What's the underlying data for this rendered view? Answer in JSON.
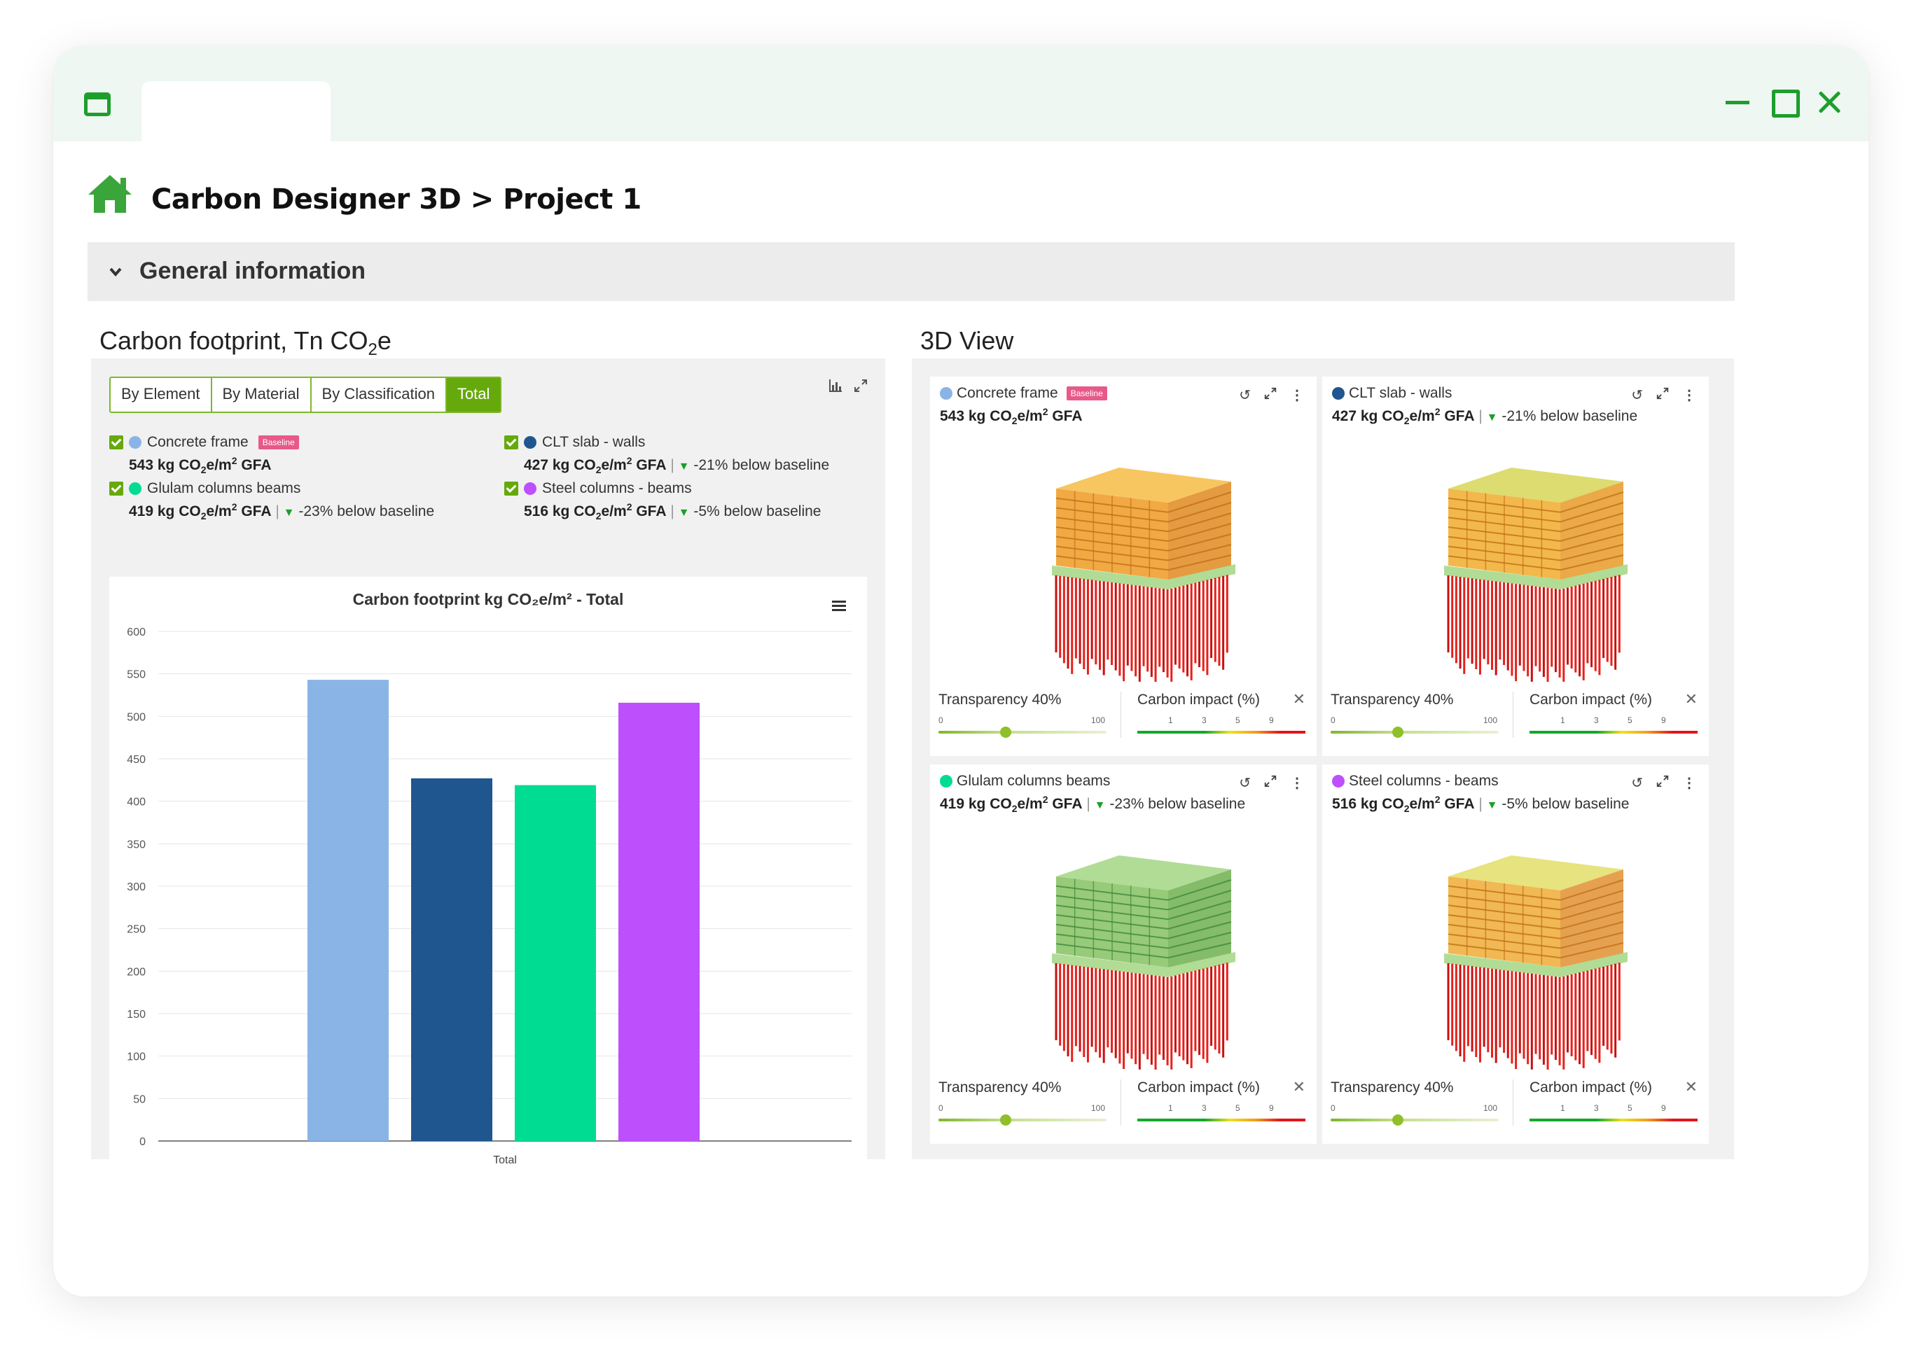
{
  "breadcrumb": "Carbon Designer 3D > Project 1",
  "section": {
    "title": "General information"
  },
  "left_panel": {
    "title_main": "Carbon footprint, Tn CO",
    "title_sub": "2",
    "title_tail": "e",
    "tabs": [
      {
        "label": "By Element",
        "active": false
      },
      {
        "label": "By Material",
        "active": false
      },
      {
        "label": "By Classification",
        "active": false
      },
      {
        "label": "Total",
        "active": true
      }
    ],
    "legend": [
      {
        "name": "Concrete frame",
        "color": "#8ab4e6",
        "value": "543 kg CO",
        "unit_tail": "e/m",
        "gfa": " GFA",
        "badge": "Baseline",
        "delta": ""
      },
      {
        "name": "CLT slab - walls",
        "color": "#1f5690",
        "value": "427 kg CO",
        "unit_tail": "e/m",
        "gfa": " GFA",
        "badge": "",
        "delta": "-21% below baseline"
      },
      {
        "name": "Glulam columns beams",
        "color": "#00dc92",
        "value": "419 kg CO",
        "unit_tail": "e/m",
        "gfa": " GFA",
        "badge": "",
        "delta": "-23% below baseline"
      },
      {
        "name": "Steel columns - beams",
        "color": "#be4ffc",
        "value": "516 kg CO",
        "unit_tail": "e/m",
        "gfa": " GFA",
        "badge": "",
        "delta": "-5% below baseline"
      }
    ]
  },
  "chart_data": {
    "type": "bar",
    "title": "Carbon footprint kg CO₂e/m² - Total",
    "categories": [
      "Total"
    ],
    "series": [
      {
        "name": "Concrete frame",
        "values": [
          543
        ],
        "color": "#8ab4e6"
      },
      {
        "name": "CLT slab - walls",
        "values": [
          427
        ],
        "color": "#1f5690"
      },
      {
        "name": "Glulam columns beams",
        "values": [
          419
        ],
        "color": "#00dc92"
      },
      {
        "name": "Steel columns - beams",
        "values": [
          516
        ],
        "color": "#be4ffc"
      }
    ],
    "yticks": [
      0,
      50,
      100,
      150,
      200,
      250,
      300,
      350,
      400,
      450,
      500,
      550,
      600
    ],
    "ylim": [
      0,
      600
    ],
    "xlabel": "Total",
    "grid": true
  },
  "right_panel": {
    "title": "3D View",
    "cards": [
      {
        "name": "Concrete frame",
        "color": "#8ab4e6",
        "value": "543 kg CO",
        "badge": "Baseline",
        "delta": "",
        "variant": "concrete"
      },
      {
        "name": "CLT slab - walls",
        "color": "#1f5690",
        "value": "427 kg CO",
        "badge": "",
        "delta": "-21% below baseline",
        "variant": "clt"
      },
      {
        "name": "Glulam columns beams",
        "color": "#00dc92",
        "value": "419 kg CO",
        "badge": "",
        "delta": "-23% below baseline",
        "variant": "glulam"
      },
      {
        "name": "Steel columns - beams",
        "color": "#be4ffc",
        "value": "516 kg CO",
        "badge": "",
        "delta": "-5% below baseline",
        "variant": "steel"
      }
    ],
    "transparency_label": "Transparency 40%",
    "transparency_value": 0.4,
    "transparency_min": "0",
    "transparency_max": "100",
    "impact_label": "Carbon impact (%)",
    "impact_ticks": [
      "1",
      "3",
      "5",
      "9"
    ],
    "unit_tail": "e/m",
    "gfa": " GFA",
    "sub2": "2",
    "sup2": "2"
  },
  "icons": {
    "home": "home-icon",
    "chart_type": "bar-chart-icon",
    "expand": "expand-icon",
    "menu": "hamburger-menu-icon",
    "reset": "rotate-reset-icon",
    "more": "more-vertical-icon",
    "close": "close-icon"
  }
}
